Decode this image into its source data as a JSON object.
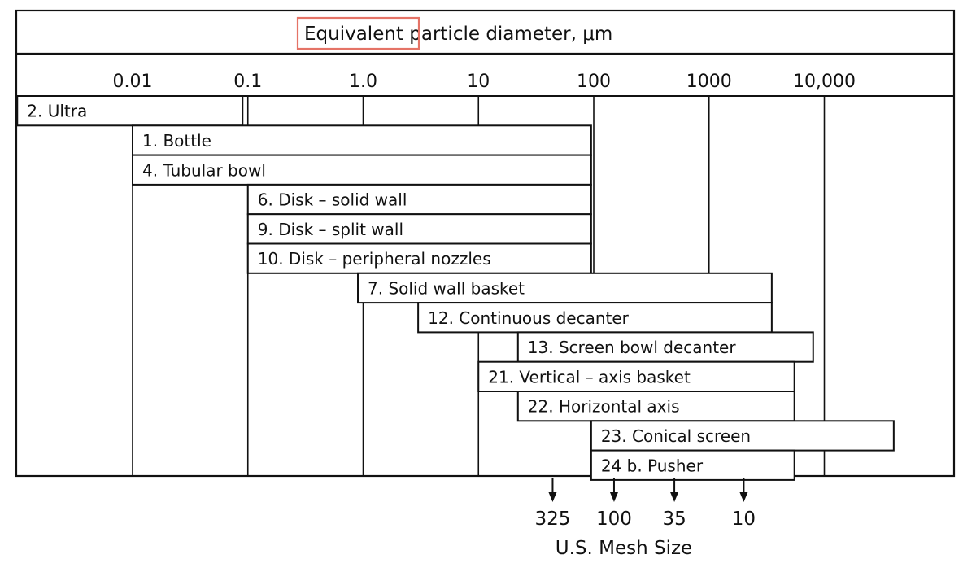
{
  "chart_data": {
    "type": "range-bar",
    "title": "Equivalent particle diameter, μm",
    "title_parts": {
      "highlighted": "Equivalent",
      "rest": "particle diameter, μm"
    },
    "x_scale": "log",
    "x_ticks": [
      0.01,
      0.1,
      1,
      10,
      100,
      1000,
      10000
    ],
    "x_tick_labels": [
      "0.01",
      "0.1",
      "1.0",
      "10",
      "100",
      "1000",
      "10,000"
    ],
    "bars": [
      {
        "label": "2. Ultra",
        "min": 0.001,
        "max": 0.09
      },
      {
        "label": "1. Bottle",
        "min": 0.01,
        "max": 95
      },
      {
        "label": "4. Tubular bowl",
        "min": 0.01,
        "max": 95
      },
      {
        "label": "6. Disk – solid wall",
        "min": 0.1,
        "max": 95
      },
      {
        "label": "9. Disk – split wall",
        "min": 0.1,
        "max": 95
      },
      {
        "label": "10. Disk – peripheral nozzles",
        "min": 0.1,
        "max": 95
      },
      {
        "label": "7. Solid wall basket",
        "min": 0.9,
        "max": 3500
      },
      {
        "label": "12. Continuous decanter",
        "min": 3,
        "max": 3500
      },
      {
        "label": "13. Screen bowl decanter",
        "min": 22,
        "max": 8000
      },
      {
        "label": "21. Vertical – axis basket",
        "min": 10,
        "max": 5500
      },
      {
        "label": "22. Horizontal axis",
        "min": 22,
        "max": 5500
      },
      {
        "label": "23. Conical screen",
        "min": 95,
        "max": 40000
      },
      {
        "label": "24 b. Pusher",
        "min": 95,
        "max": 5500
      }
    ],
    "mesh": {
      "label": "U.S. Mesh Size",
      "marks": [
        {
          "label": "325",
          "diameter_um": 44
        },
        {
          "label": "100",
          "diameter_um": 150
        },
        {
          "label": "35",
          "diameter_um": 500
        },
        {
          "label": "10",
          "diameter_um": 2000
        }
      ]
    },
    "highlight_color": "#e57366",
    "grid": true
  }
}
